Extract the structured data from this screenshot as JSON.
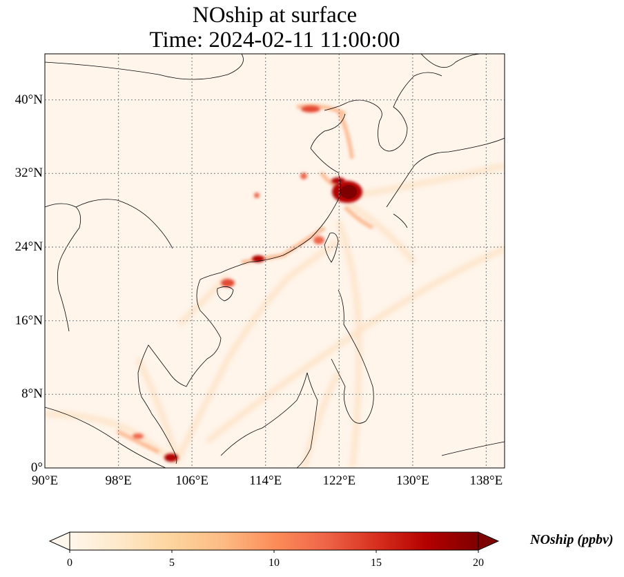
{
  "title": {
    "line1": "NOship at surface",
    "line2": "Time: 2024-02-11 11:00:00"
  },
  "map": {
    "extent": {
      "lon_min": 90,
      "lon_max": 140,
      "lat_min": 0,
      "lat_max": 45
    },
    "lat_ticks": [
      "0°",
      "8°N",
      "16°N",
      "24°N",
      "32°N",
      "40°N"
    ],
    "lat_values": [
      0,
      8,
      16,
      24,
      32,
      40
    ],
    "lon_ticks": [
      "90°E",
      "98°E",
      "106°E",
      "114°E",
      "122°E",
      "130°E",
      "138°E"
    ],
    "lon_values": [
      90,
      98,
      106,
      114,
      122,
      130,
      138
    ],
    "gridlines": true,
    "background_color": "#fff5eb",
    "coastline_color": "#000000"
  },
  "colorbar": {
    "label": "NOship (ppbv)",
    "min": 0,
    "max": 20,
    "ticks": [
      "0",
      "5",
      "10",
      "15",
      "20"
    ],
    "tick_values": [
      0,
      5,
      10,
      15,
      20
    ],
    "extend": "both",
    "colormap": "OrRd",
    "colors": [
      "#fff7ec",
      "#fee8c8",
      "#fdd49e",
      "#fdbb84",
      "#fc8d59",
      "#ef6548",
      "#d7301f",
      "#b30000",
      "#7f0000"
    ]
  }
}
